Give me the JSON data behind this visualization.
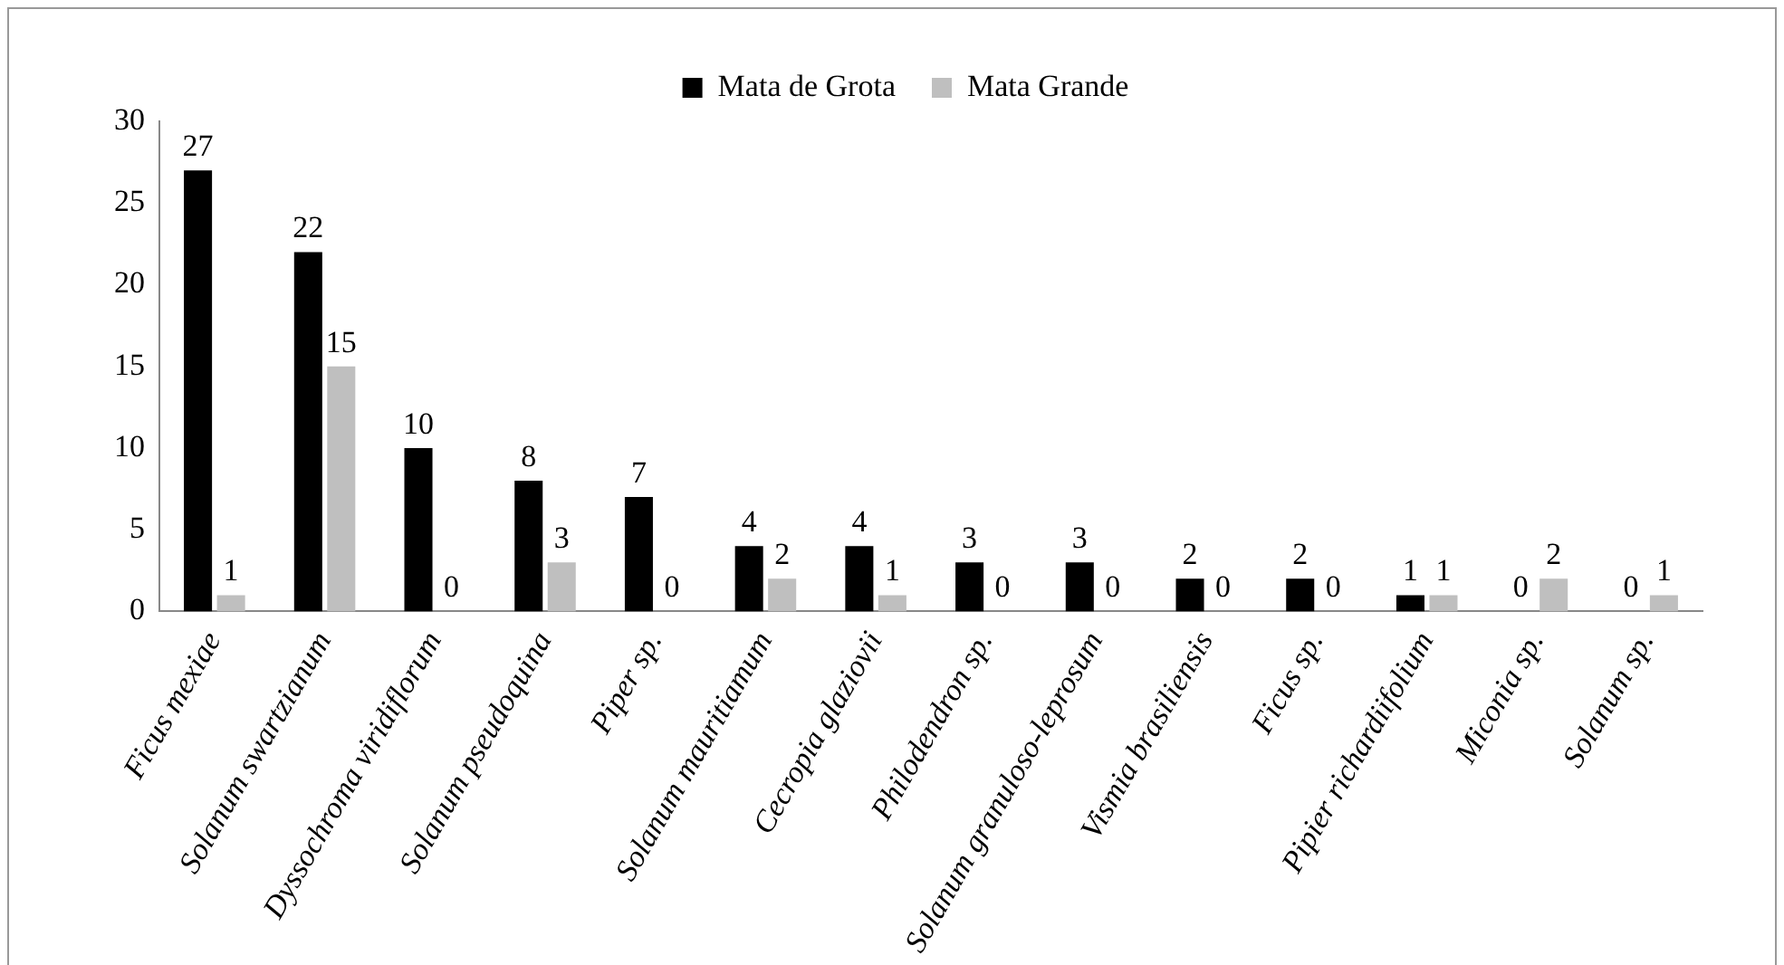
{
  "chart_data": {
    "type": "bar",
    "categories": [
      "Ficus mexiae",
      "Solanum swartzianum",
      "Dyssochroma viridiflorum",
      "Solanum pseudoquina",
      "Piper sp.",
      "Solanum mauritiamum",
      "Cecropia glaziovii",
      "Philodendron sp.",
      "Solanum granuloso-leprosum",
      "Vismia brasiliensis",
      "Ficus sp.",
      "Pipier richardiifolium",
      "Miconia sp.",
      "Solanum sp."
    ],
    "series": [
      {
        "name": "Mata de Grota",
        "color": "#000000",
        "values": [
          27,
          22,
          10,
          8,
          7,
          4,
          4,
          3,
          3,
          2,
          2,
          1,
          0,
          0
        ]
      },
      {
        "name": "Mata Grande",
        "color": "#bfbfbf",
        "values": [
          1,
          15,
          0,
          3,
          0,
          2,
          1,
          0,
          0,
          0,
          0,
          1,
          2,
          1
        ]
      }
    ],
    "ylim": [
      0,
      30
    ],
    "yticks": [
      0,
      5,
      10,
      15,
      20,
      25,
      30
    ],
    "grid": false,
    "legend": "top",
    "data_labels": true
  }
}
